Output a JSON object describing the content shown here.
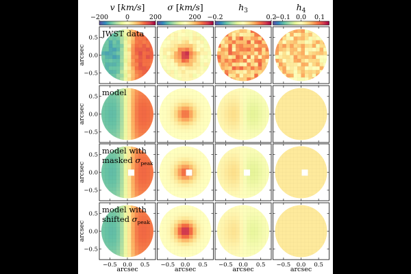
{
  "figure": {
    "columns": [
      {
        "label": "v [km/s]",
        "colorbar": {
          "min": -200,
          "max": 200,
          "ticks": [
            "−200",
            "0",
            "200"
          ]
        }
      },
      {
        "label": "σ [km/s]",
        "colorbar": {
          "min": 0,
          "max": 300,
          "ticks": [
            "200"
          ]
        }
      },
      {
        "label": "h3",
        "colorbar": {
          "min": -0.2,
          "max": 0.2,
          "ticks": [
            "−0.2",
            "0.2"
          ]
        }
      },
      {
        "label": "h4",
        "colorbar": {
          "min": -0.15,
          "max": 0.15,
          "ticks": [
            "−0.1",
            "0.0",
            "0.1"
          ]
        }
      }
    ],
    "rows": [
      {
        "label": "JWST data"
      },
      {
        "label": "model"
      },
      {
        "label": "model with masked σpeak"
      },
      {
        "label": "model with shifted σpeak"
      }
    ],
    "axis_label": "arcsec",
    "x_ticks": [
      "−0.5",
      "0.0",
      "0.5"
    ],
    "y_ticks": [
      "0.5",
      "0.0",
      "−0.5"
    ]
  },
  "chart_data": {
    "type": "heatmap",
    "x_range_arcsec": [
      -0.8,
      0.8
    ],
    "y_range_arcsec": [
      -0.8,
      0.8
    ],
    "colormap": "Spectral_r",
    "panels": [
      {
        "row": "JWST data",
        "column": "v",
        "pattern": "dipole",
        "amplitude": 150,
        "noise": 15
      },
      {
        "row": "JWST data",
        "column": "sigma",
        "pattern": "peak",
        "center": 270,
        "edge": 150,
        "noise": 15
      },
      {
        "row": "JWST data",
        "column": "h3",
        "pattern": "noise",
        "level": 0.07,
        "noise": 0.06
      },
      {
        "row": "JWST data",
        "column": "h4",
        "pattern": "noise",
        "level": 0.03,
        "noise": 0.04
      },
      {
        "row": "model",
        "column": "v",
        "pattern": "dipole",
        "amplitude": 140,
        "noise": 0
      },
      {
        "row": "model",
        "column": "sigma",
        "pattern": "peak",
        "center": 240,
        "edge": 150,
        "noise": 0
      },
      {
        "row": "model",
        "column": "h3",
        "pattern": "antisym",
        "amplitude": 0.07,
        "noise": 0
      },
      {
        "row": "model",
        "column": "h4",
        "pattern": "flat",
        "level": 0.02,
        "noise": 0
      },
      {
        "row": "model with masked σpeak",
        "column": "v",
        "pattern": "dipole",
        "amplitude": 140,
        "noise": 0,
        "masked_center": true
      },
      {
        "row": "model with masked σpeak",
        "column": "sigma",
        "pattern": "peak",
        "center": 245,
        "edge": 150,
        "noise": 0,
        "masked_center": true
      },
      {
        "row": "model with masked σpeak",
        "column": "h3",
        "pattern": "antisym",
        "amplitude": 0.07,
        "noise": 0,
        "masked_center": true
      },
      {
        "row": "model with masked σpeak",
        "column": "h4",
        "pattern": "flat",
        "level": 0.02,
        "noise": 0,
        "masked_center": true
      },
      {
        "row": "model with shifted σpeak",
        "column": "v",
        "pattern": "dipole",
        "amplitude": 140,
        "noise": 0
      },
      {
        "row": "model with shifted σpeak",
        "column": "sigma",
        "pattern": "peak",
        "center": 280,
        "edge": 150,
        "noise": 0
      },
      {
        "row": "model with shifted σpeak",
        "column": "h3",
        "pattern": "antisym",
        "amplitude": 0.06,
        "noise": 0
      },
      {
        "row": "model with shifted σpeak",
        "column": "h4",
        "pattern": "flat",
        "level": 0.02,
        "noise": 0
      }
    ]
  }
}
